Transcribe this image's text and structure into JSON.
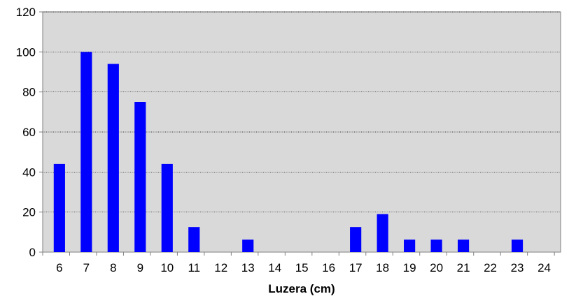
{
  "chart_data": {
    "type": "bar",
    "title": "",
    "xlabel": "Luzera (cm)",
    "ylabel": "",
    "categories": [
      "6",
      "7",
      "8",
      "9",
      "10",
      "11",
      "12",
      "13",
      "14",
      "15",
      "16",
      "17",
      "18",
      "19",
      "20",
      "21",
      "22",
      "23",
      "24"
    ],
    "values": [
      44,
      100,
      94,
      75,
      44,
      12.5,
      0,
      6.25,
      0,
      0,
      0,
      12.5,
      19,
      6.25,
      6.25,
      6.25,
      0,
      6.25,
      0
    ],
    "ylim": [
      0,
      120
    ],
    "yticks": [
      0,
      20,
      40,
      60,
      80,
      100,
      120
    ],
    "grid": true,
    "legend": "none",
    "colors": {
      "bar": "#0000ff",
      "plot_background": "#d9d9d9",
      "gridline": "#000000",
      "axis": "#808080"
    }
  }
}
